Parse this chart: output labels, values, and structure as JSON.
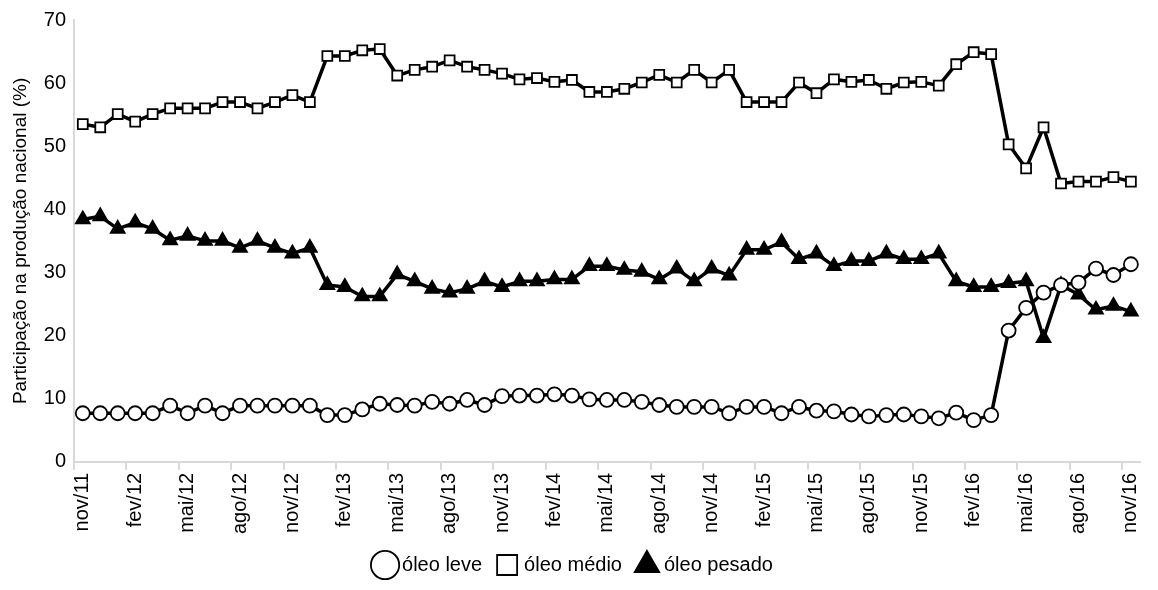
{
  "chart_data": {
    "type": "line",
    "ylabel": "Participação na produção nacional (%)",
    "categories": [
      "nov/11",
      null,
      null,
      "fev/12",
      null,
      null,
      "mai/12",
      null,
      null,
      "ago/12",
      null,
      null,
      "nov/12",
      null,
      null,
      "fev/13",
      null,
      null,
      "mai/13",
      null,
      null,
      "ago/13",
      null,
      null,
      "nov/13",
      null,
      null,
      "fev/14",
      null,
      null,
      "mai/14",
      null,
      null,
      "ago/14",
      null,
      null,
      "nov/14",
      null,
      null,
      "fev/15",
      null,
      null,
      "mai/15",
      null,
      null,
      "ago/15",
      null,
      null,
      "nov/15",
      null,
      null,
      "fev/16",
      null,
      null,
      "mai/16",
      null,
      null,
      "ago/16",
      null,
      null,
      "nov/16"
    ],
    "series": [
      {
        "name": "óleo leve",
        "color": "#000000",
        "marker": "circle",
        "values": [
          7.7,
          7.7,
          7.7,
          7.7,
          7.7,
          8.9,
          7.7,
          8.9,
          7.7,
          8.9,
          8.9,
          8.9,
          8.9,
          8.9,
          7.4,
          7.4,
          8.3,
          9.2,
          9,
          8.9,
          9.5,
          9.2,
          9.8,
          9,
          10.4,
          10.5,
          10.5,
          10.7,
          10.5,
          9.9,
          9.8,
          9.8,
          9.5,
          9,
          8.7,
          8.7,
          8.7,
          7.7,
          8.7,
          8.7,
          7.7,
          8.7,
          8.1,
          8,
          7.5,
          7.2,
          7.4,
          7.5,
          7.2,
          6.9,
          7.8,
          6.6,
          7.4,
          20.8,
          24.4,
          26.8,
          28,
          28.4,
          30.6,
          29.6,
          31.3
        ]
      },
      {
        "name": "óleo médio",
        "color": "#000000",
        "marker": "square",
        "values": [
          53.5,
          53,
          55.1,
          53.9,
          55.1,
          56,
          56,
          56,
          57,
          57,
          56,
          57,
          58.1,
          57,
          64.3,
          64.3,
          65.2,
          65.4,
          61.2,
          62.1,
          62.6,
          63.6,
          62.6,
          62.1,
          61.5,
          60.6,
          60.8,
          60.2,
          60.5,
          58.6,
          58.6,
          59.1,
          60.1,
          61.3,
          60.1,
          62.1,
          60.1,
          62.1,
          57,
          57,
          57,
          60.1,
          58.4,
          60.6,
          60.2,
          60.5,
          59.1,
          60.1,
          60.2,
          59.6,
          63,
          64.9,
          64.6,
          50.3,
          46.5,
          53,
          44.1,
          44.4,
          44.4,
          45.1,
          44.4
        ]
      },
      {
        "name": "óleo pesado",
        "color": "#000000",
        "marker": "triangle",
        "values": [
          38.4,
          38.9,
          36.9,
          37.9,
          36.9,
          35.1,
          35.8,
          35,
          35,
          33.9,
          35,
          33.9,
          33,
          33.9,
          28,
          27.7,
          26.2,
          26.2,
          29.7,
          28.6,
          27.4,
          26.8,
          27.4,
          28.6,
          27.7,
          28.6,
          28.6,
          28.9,
          28.9,
          31,
          31,
          30.4,
          30.1,
          28.9,
          30.6,
          28.6,
          30.6,
          29.5,
          33.6,
          33.6,
          34.8,
          32.1,
          33,
          31,
          31.8,
          31.8,
          33,
          32.1,
          32.1,
          33,
          28.6,
          27.7,
          27.7,
          28.3,
          28.6,
          19.6,
          28,
          26.5,
          24.1,
          24.7,
          23.8
        ]
      }
    ],
    "ylim": [
      0,
      70
    ],
    "yticks": [
      0,
      10,
      20,
      30,
      40,
      50,
      60,
      70
    ],
    "grid": false,
    "legend": "bottom"
  }
}
